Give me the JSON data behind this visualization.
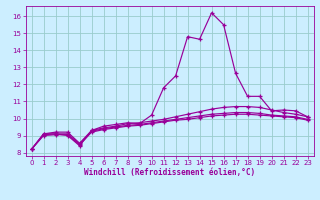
{
  "xlabel": "Windchill (Refroidissement éolien,°C)",
  "bg_color": "#cceeff",
  "line_color": "#990099",
  "grid_color": "#99cccc",
  "xlim": [
    -0.5,
    23.5
  ],
  "ylim": [
    7.8,
    16.6
  ],
  "yticks": [
    8,
    9,
    10,
    11,
    12,
    13,
    14,
    15,
    16
  ],
  "xticks": [
    0,
    1,
    2,
    3,
    4,
    5,
    6,
    7,
    8,
    9,
    10,
    11,
    12,
    13,
    14,
    15,
    16,
    17,
    18,
    19,
    20,
    21,
    22,
    23
  ],
  "series1_x": [
    0,
    1,
    2,
    3,
    4,
    5,
    6,
    7,
    8,
    9,
    10,
    11,
    12,
    13,
    14,
    15,
    16,
    17,
    18,
    19,
    20,
    21,
    22,
    23
  ],
  "series1_y": [
    8.2,
    9.1,
    9.1,
    9.0,
    8.4,
    9.3,
    9.55,
    9.65,
    9.75,
    9.7,
    10.2,
    11.8,
    12.5,
    14.8,
    14.65,
    16.2,
    15.5,
    12.65,
    11.3,
    11.3,
    10.45,
    10.5,
    10.45,
    10.1
  ],
  "series2_x": [
    0,
    1,
    2,
    3,
    4,
    5,
    6,
    7,
    8,
    9,
    10,
    11,
    12,
    13,
    14,
    15,
    16,
    17,
    18,
    19,
    20,
    21,
    22,
    23
  ],
  "series2_y": [
    8.2,
    9.1,
    9.2,
    9.2,
    8.55,
    9.3,
    9.45,
    9.55,
    9.7,
    9.75,
    9.85,
    9.95,
    10.1,
    10.25,
    10.4,
    10.55,
    10.65,
    10.7,
    10.7,
    10.65,
    10.5,
    10.35,
    10.25,
    10.1
  ],
  "series3_x": [
    0,
    1,
    2,
    3,
    4,
    5,
    6,
    7,
    8,
    9,
    10,
    11,
    12,
    13,
    14,
    15,
    16,
    17,
    18,
    19,
    20,
    21,
    22,
    23
  ],
  "series3_y": [
    8.2,
    9.05,
    9.1,
    9.1,
    8.5,
    9.25,
    9.4,
    9.5,
    9.6,
    9.65,
    9.75,
    9.85,
    9.95,
    10.05,
    10.15,
    10.25,
    10.3,
    10.35,
    10.35,
    10.3,
    10.2,
    10.15,
    10.1,
    9.95
  ],
  "series4_x": [
    0,
    1,
    2,
    3,
    4,
    5,
    6,
    7,
    8,
    9,
    10,
    11,
    12,
    13,
    14,
    15,
    16,
    17,
    18,
    19,
    20,
    21,
    22,
    23
  ],
  "series4_y": [
    8.2,
    9.0,
    9.05,
    9.05,
    8.45,
    9.2,
    9.35,
    9.45,
    9.55,
    9.6,
    9.7,
    9.8,
    9.9,
    9.95,
    10.05,
    10.15,
    10.2,
    10.25,
    10.25,
    10.2,
    10.15,
    10.1,
    10.05,
    9.9
  ]
}
